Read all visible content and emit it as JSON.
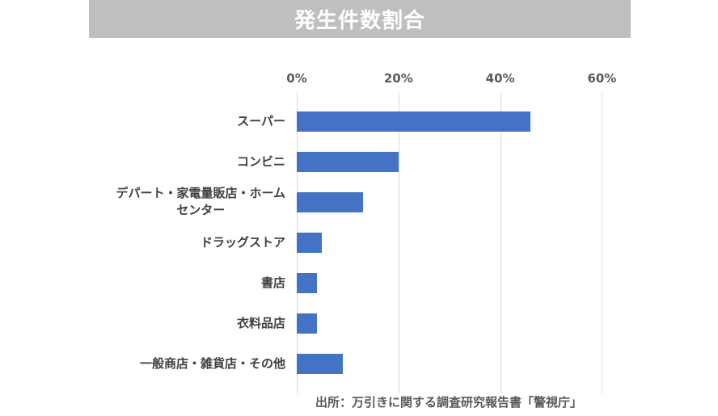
{
  "title": "発生件数割合",
  "axis": {
    "ticks": [
      "0%",
      "20%",
      "40%",
      "60%"
    ]
  },
  "categories": [
    {
      "label": "スーパー",
      "value": 46
    },
    {
      "label": "コンビニ",
      "value": 20
    },
    {
      "label": "デパート・家電量販店・ホーム\nセンター",
      "value": 13
    },
    {
      "label": "ドラッグストア",
      "value": 5
    },
    {
      "label": "書店",
      "value": 4
    },
    {
      "label": "衣料品店",
      "value": 4
    },
    {
      "label": "一般商店・雑貨店・その他",
      "value": 9
    }
  ],
  "source": "出所：万引きに関する調査研究報告書「警視庁」",
  "colors": {
    "bar": "#4472c4",
    "title_bg": "#bfbfbf",
    "grid": "#d9d9d9"
  },
  "chart_data": {
    "type": "bar",
    "orientation": "horizontal",
    "title": "発生件数割合",
    "categories": [
      "スーパー",
      "コンビニ",
      "デパート・家電量販店・ホームセンター",
      "ドラッグストア",
      "書店",
      "衣料品店",
      "一般商店・雑貨店・その他"
    ],
    "values": [
      46,
      20,
      13,
      5,
      4,
      4,
      9
    ],
    "xlabel": "",
    "ylabel": "",
    "xlim": [
      0,
      60
    ],
    "x_ticks": [
      "0%",
      "20%",
      "40%",
      "60%"
    ],
    "x_axis_position": "top",
    "grid": true,
    "legend": null,
    "annotation": "出所：万引きに関する調査研究報告書「警視庁」"
  }
}
